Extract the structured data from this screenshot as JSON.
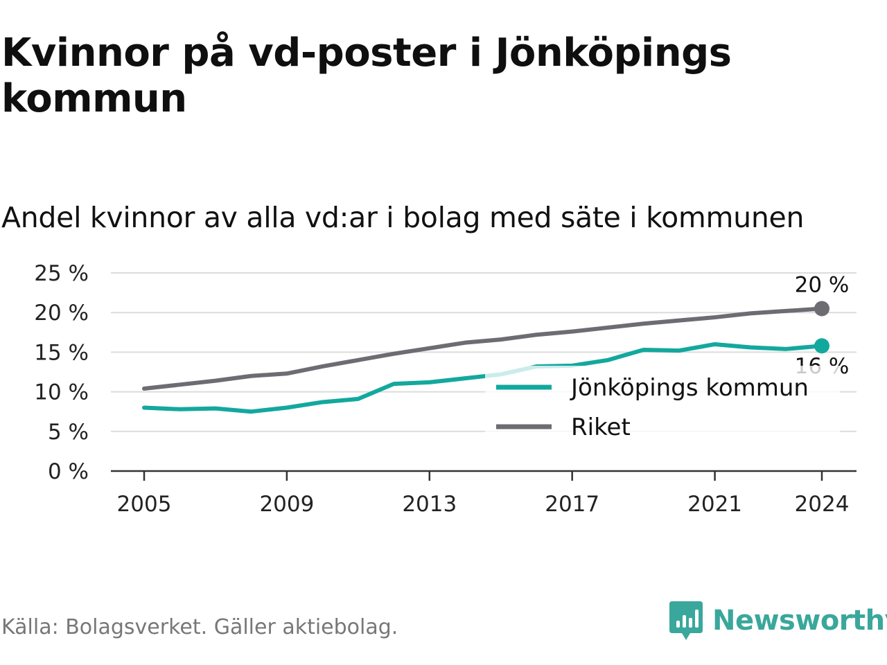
{
  "title": "Kvinnor på vd-poster i Jönköpings kommun",
  "subtitle": "Andel kvinnor av alla vd:ar i bolag med säte i kommunen",
  "source": "Källa: Bolagsverket. Gäller aktiebolag.",
  "brand": {
    "name": "Newsworthy",
    "icon": "newsworthy-logo-icon",
    "color": "#3aa79c"
  },
  "chart_data": {
    "type": "line",
    "x": [
      2005,
      2006,
      2007,
      2008,
      2009,
      2010,
      2011,
      2012,
      2013,
      2014,
      2015,
      2016,
      2017,
      2018,
      2019,
      2020,
      2021,
      2022,
      2023,
      2024
    ],
    "x_ticks": [
      "2005",
      "2009",
      "2013",
      "2017",
      "2021",
      "2024"
    ],
    "y_ticks": [
      "0 %",
      "5 %",
      "10 %",
      "15 %",
      "20 %",
      "25 %"
    ],
    "ylim": [
      0,
      25
    ],
    "grid": true,
    "legend_position": "bottom-right",
    "series": [
      {
        "name": "Jönköpings kommun",
        "color": "#13a89e",
        "values": [
          8.0,
          7.8,
          7.9,
          7.5,
          8.0,
          8.7,
          9.1,
          11.0,
          11.2,
          11.7,
          12.2,
          13.2,
          13.3,
          14.0,
          15.3,
          15.2,
          16.0,
          15.6,
          15.4,
          15.8
        ],
        "end_label": "16 %"
      },
      {
        "name": "Riket",
        "color": "#6d6c73",
        "values": [
          10.4,
          10.9,
          11.4,
          12.0,
          12.3,
          13.2,
          14.0,
          14.8,
          15.5,
          16.2,
          16.6,
          17.2,
          17.6,
          18.1,
          18.6,
          19.0,
          19.4,
          19.9,
          20.2,
          20.5
        ],
        "end_label": "20 %"
      }
    ]
  }
}
